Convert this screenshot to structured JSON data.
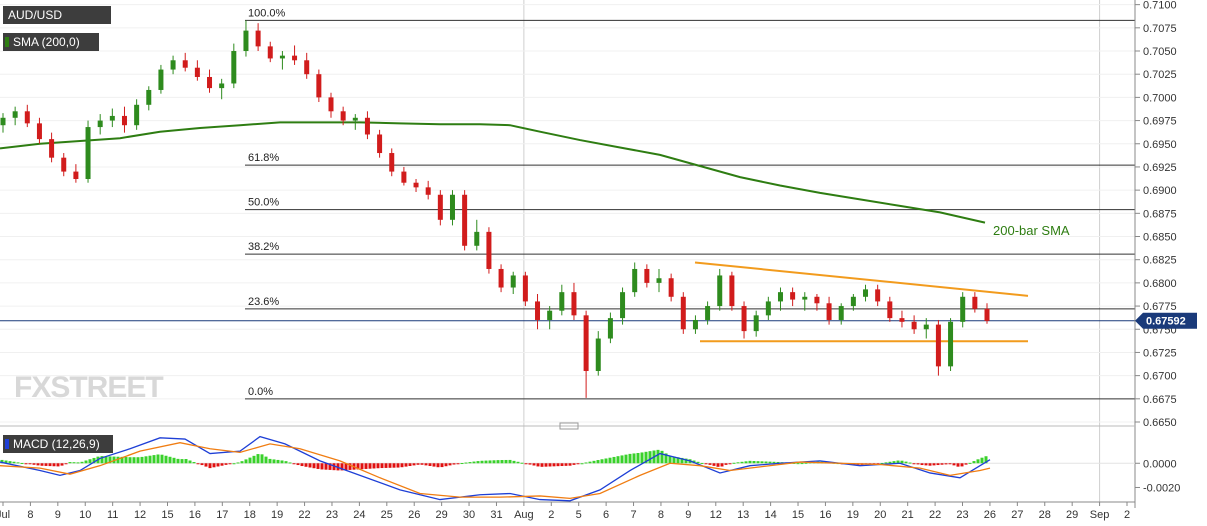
{
  "chart_data": [
    {
      "type": "candlestick",
      "title": "AUD/USD",
      "indicator_label": "SMA (200,0)",
      "watermark": "FXSTREET",
      "ylim": [
        0.665,
        0.7105
      ],
      "y_ticks": [
        "0.7100",
        "0.7075",
        "0.7050",
        "0.7025",
        "0.7000",
        "0.6975",
        "0.6950",
        "0.6925",
        "0.6900",
        "0.6875",
        "0.6850",
        "0.6825",
        "0.6800",
        "0.6775",
        "0.6750",
        "0.6725",
        "0.6700",
        "0.6675",
        "0.6650"
      ],
      "x_ticks": [
        "Jul",
        "8",
        "9",
        "10",
        "11",
        "12",
        "15",
        "16",
        "17",
        "18",
        "19",
        "22",
        "23",
        "24",
        "25",
        "26",
        "29",
        "30",
        "31",
        "Aug",
        "2",
        "5",
        "6",
        "7",
        "8",
        "9",
        "12",
        "13",
        "14",
        "15",
        "16",
        "19",
        "20",
        "21",
        "22",
        "23",
        "26",
        "27",
        "28",
        "29",
        "Sep",
        "2"
      ],
      "current_price": "0.67592",
      "fibonacci": [
        {
          "label": "100.0%",
          "value": 0.7083
        },
        {
          "label": "61.8%",
          "value": 0.6927
        },
        {
          "label": "50.0%",
          "value": 0.6879
        },
        {
          "label": "38.2%",
          "value": 0.6831
        },
        {
          "label": "23.6%",
          "value": 0.6772
        },
        {
          "label": "0.0%",
          "value": 0.6675
        }
      ],
      "sma_label": "200-bar SMA",
      "sma_points": [
        [
          0,
          0.6945
        ],
        [
          40,
          0.695
        ],
        [
          80,
          0.6953
        ],
        [
          120,
          0.6956
        ],
        [
          160,
          0.6963
        ],
        [
          200,
          0.6967
        ],
        [
          240,
          0.697
        ],
        [
          280,
          0.6973
        ],
        [
          320,
          0.6973
        ],
        [
          360,
          0.6973
        ],
        [
          400,
          0.6972
        ],
        [
          440,
          0.6971
        ],
        [
          480,
          0.6971
        ],
        [
          510,
          0.697
        ],
        [
          540,
          0.6963
        ],
        [
          580,
          0.6954
        ],
        [
          620,
          0.6946
        ],
        [
          660,
          0.6938
        ],
        [
          700,
          0.6926
        ],
        [
          740,
          0.6914
        ],
        [
          780,
          0.6905
        ],
        [
          820,
          0.6897
        ],
        [
          860,
          0.689
        ],
        [
          900,
          0.6883
        ],
        [
          940,
          0.6876
        ],
        [
          985,
          0.6865
        ]
      ],
      "trendlines": [
        {
          "name": "resistance",
          "points": [
            [
              695,
              0.6822
            ],
            [
              1028,
              0.6786
            ]
          ]
        },
        {
          "name": "support",
          "points": [
            [
              700,
              0.6737
            ],
            [
              1028,
              0.6737
            ]
          ]
        }
      ],
      "candles": [
        {
          "o": 0.697,
          "h": 0.6983,
          "l": 0.6962,
          "c": 0.6978
        },
        {
          "o": 0.6978,
          "h": 0.699,
          "l": 0.697,
          "c": 0.6985
        },
        {
          "o": 0.6985,
          "h": 0.6992,
          "l": 0.6968,
          "c": 0.6972
        },
        {
          "o": 0.6972,
          "h": 0.6978,
          "l": 0.695,
          "c": 0.6955
        },
        {
          "o": 0.6955,
          "h": 0.6962,
          "l": 0.693,
          "c": 0.6935
        },
        {
          "o": 0.6935,
          "h": 0.694,
          "l": 0.6915,
          "c": 0.692
        },
        {
          "o": 0.692,
          "h": 0.6928,
          "l": 0.6908,
          "c": 0.6912
        },
        {
          "o": 0.6912,
          "h": 0.6975,
          "l": 0.6908,
          "c": 0.6968
        },
        {
          "o": 0.6968,
          "h": 0.6982,
          "l": 0.696,
          "c": 0.6975
        },
        {
          "o": 0.6975,
          "h": 0.6988,
          "l": 0.6968,
          "c": 0.698
        },
        {
          "o": 0.698,
          "h": 0.699,
          "l": 0.6962,
          "c": 0.697
        },
        {
          "o": 0.697,
          "h": 0.6998,
          "l": 0.6965,
          "c": 0.6992
        },
        {
          "o": 0.6992,
          "h": 0.7012,
          "l": 0.6986,
          "c": 0.7008
        },
        {
          "o": 0.7008,
          "h": 0.7035,
          "l": 0.7004,
          "c": 0.703
        },
        {
          "o": 0.703,
          "h": 0.7045,
          "l": 0.7025,
          "c": 0.704
        },
        {
          "o": 0.704,
          "h": 0.7048,
          "l": 0.7028,
          "c": 0.7032
        },
        {
          "o": 0.7032,
          "h": 0.704,
          "l": 0.7018,
          "c": 0.7022
        },
        {
          "o": 0.7022,
          "h": 0.703,
          "l": 0.7005,
          "c": 0.701
        },
        {
          "o": 0.701,
          "h": 0.702,
          "l": 0.6998,
          "c": 0.7015
        },
        {
          "o": 0.7015,
          "h": 0.7058,
          "l": 0.701,
          "c": 0.705
        },
        {
          "o": 0.705,
          "h": 0.7083,
          "l": 0.7044,
          "c": 0.7072
        },
        {
          "o": 0.7072,
          "h": 0.708,
          "l": 0.705,
          "c": 0.7055
        },
        {
          "o": 0.7055,
          "h": 0.706,
          "l": 0.7038,
          "c": 0.7042
        },
        {
          "o": 0.7042,
          "h": 0.705,
          "l": 0.703,
          "c": 0.7045
        },
        {
          "o": 0.7045,
          "h": 0.7056,
          "l": 0.7035,
          "c": 0.704
        },
        {
          "o": 0.704,
          "h": 0.7048,
          "l": 0.702,
          "c": 0.7025
        },
        {
          "o": 0.7025,
          "h": 0.703,
          "l": 0.6995,
          "c": 0.7
        },
        {
          "o": 0.7,
          "h": 0.7005,
          "l": 0.6978,
          "c": 0.6985
        },
        {
          "o": 0.6985,
          "h": 0.699,
          "l": 0.697,
          "c": 0.6975
        },
        {
          "o": 0.6975,
          "h": 0.6982,
          "l": 0.6965,
          "c": 0.6978
        },
        {
          "o": 0.6978,
          "h": 0.6985,
          "l": 0.6955,
          "c": 0.696
        },
        {
          "o": 0.696,
          "h": 0.6965,
          "l": 0.6935,
          "c": 0.694
        },
        {
          "o": 0.694,
          "h": 0.6945,
          "l": 0.6915,
          "c": 0.692
        },
        {
          "o": 0.692,
          "h": 0.6925,
          "l": 0.6905,
          "c": 0.6908
        },
        {
          "o": 0.6908,
          "h": 0.6912,
          "l": 0.6898,
          "c": 0.6903
        },
        {
          "o": 0.6903,
          "h": 0.691,
          "l": 0.689,
          "c": 0.6895
        },
        {
          "o": 0.6895,
          "h": 0.69,
          "l": 0.6862,
          "c": 0.6868
        },
        {
          "o": 0.6868,
          "h": 0.69,
          "l": 0.6862,
          "c": 0.6895
        },
        {
          "o": 0.6895,
          "h": 0.69,
          "l": 0.6835,
          "c": 0.684
        },
        {
          "o": 0.684,
          "h": 0.6868,
          "l": 0.6835,
          "c": 0.6855
        },
        {
          "o": 0.6855,
          "h": 0.686,
          "l": 0.681,
          "c": 0.6815
        },
        {
          "o": 0.6815,
          "h": 0.682,
          "l": 0.679,
          "c": 0.6795
        },
        {
          "o": 0.6795,
          "h": 0.6812,
          "l": 0.6788,
          "c": 0.6808
        },
        {
          "o": 0.6808,
          "h": 0.6812,
          "l": 0.6775,
          "c": 0.678
        },
        {
          "o": 0.678,
          "h": 0.6788,
          "l": 0.675,
          "c": 0.676
        },
        {
          "o": 0.676,
          "h": 0.6775,
          "l": 0.675,
          "c": 0.677
        },
        {
          "o": 0.677,
          "h": 0.6798,
          "l": 0.6765,
          "c": 0.679
        },
        {
          "o": 0.679,
          "h": 0.68,
          "l": 0.676,
          "c": 0.6765
        },
        {
          "o": 0.6765,
          "h": 0.677,
          "l": 0.6676,
          "c": 0.6705
        },
        {
          "o": 0.6705,
          "h": 0.6748,
          "l": 0.67,
          "c": 0.674
        },
        {
          "o": 0.674,
          "h": 0.6768,
          "l": 0.6735,
          "c": 0.6762
        },
        {
          "o": 0.6762,
          "h": 0.6795,
          "l": 0.6755,
          "c": 0.679
        },
        {
          "o": 0.679,
          "h": 0.6822,
          "l": 0.6785,
          "c": 0.6815
        },
        {
          "o": 0.6815,
          "h": 0.682,
          "l": 0.6795,
          "c": 0.68
        },
        {
          "o": 0.68,
          "h": 0.6815,
          "l": 0.679,
          "c": 0.6805
        },
        {
          "o": 0.6805,
          "h": 0.681,
          "l": 0.678,
          "c": 0.6785
        },
        {
          "o": 0.6785,
          "h": 0.679,
          "l": 0.6745,
          "c": 0.675
        },
        {
          "o": 0.675,
          "h": 0.6765,
          "l": 0.6745,
          "c": 0.676
        },
        {
          "o": 0.676,
          "h": 0.678,
          "l": 0.6755,
          "c": 0.6775
        },
        {
          "o": 0.6775,
          "h": 0.6815,
          "l": 0.677,
          "c": 0.6808
        },
        {
          "o": 0.6808,
          "h": 0.6812,
          "l": 0.677,
          "c": 0.6775
        },
        {
          "o": 0.6775,
          "h": 0.678,
          "l": 0.674,
          "c": 0.6748
        },
        {
          "o": 0.6748,
          "h": 0.677,
          "l": 0.6742,
          "c": 0.6765
        },
        {
          "o": 0.6765,
          "h": 0.6785,
          "l": 0.676,
          "c": 0.678
        },
        {
          "o": 0.678,
          "h": 0.6795,
          "l": 0.677,
          "c": 0.679
        },
        {
          "o": 0.679,
          "h": 0.6795,
          "l": 0.6775,
          "c": 0.6782
        },
        {
          "o": 0.6782,
          "h": 0.679,
          "l": 0.677,
          "c": 0.6785
        },
        {
          "o": 0.6785,
          "h": 0.6788,
          "l": 0.677,
          "c": 0.6778
        },
        {
          "o": 0.6778,
          "h": 0.6785,
          "l": 0.6755,
          "c": 0.676
        },
        {
          "o": 0.676,
          "h": 0.6778,
          "l": 0.6755,
          "c": 0.6775
        },
        {
          "o": 0.6775,
          "h": 0.6788,
          "l": 0.677,
          "c": 0.6785
        },
        {
          "o": 0.6785,
          "h": 0.6798,
          "l": 0.678,
          "c": 0.6793
        },
        {
          "o": 0.6793,
          "h": 0.6798,
          "l": 0.6775,
          "c": 0.678
        },
        {
          "o": 0.678,
          "h": 0.6785,
          "l": 0.6758,
          "c": 0.6762
        },
        {
          "o": 0.6762,
          "h": 0.677,
          "l": 0.6752,
          "c": 0.6758
        },
        {
          "o": 0.6758,
          "h": 0.6765,
          "l": 0.6745,
          "c": 0.675
        },
        {
          "o": 0.675,
          "h": 0.6762,
          "l": 0.674,
          "c": 0.6755
        },
        {
          "o": 0.6755,
          "h": 0.676,
          "l": 0.67,
          "c": 0.671
        },
        {
          "o": 0.671,
          "h": 0.6762,
          "l": 0.6705,
          "c": 0.6758
        },
        {
          "o": 0.6758,
          "h": 0.679,
          "l": 0.6752,
          "c": 0.6785
        },
        {
          "o": 0.6785,
          "h": 0.679,
          "l": 0.6768,
          "c": 0.6772
        },
        {
          "o": 0.6772,
          "h": 0.6778,
          "l": 0.6756,
          "c": 0.6759
        }
      ]
    },
    {
      "type": "macd",
      "label": "MACD (12,26,9)",
      "ylim": [
        -0.0032,
        0.0025
      ],
      "y_ticks": [
        "0.0000",
        "-0.0020"
      ],
      "macd_points": [
        [
          0,
          0.0001
        ],
        [
          40,
          -0.0006
        ],
        [
          60,
          -0.001
        ],
        [
          80,
          -0.0006
        ],
        [
          100,
          0.0004
        ],
        [
          130,
          0.0012
        ],
        [
          160,
          0.0021
        ],
        [
          185,
          0.002
        ],
        [
          210,
          0.0008
        ],
        [
          240,
          0.001
        ],
        [
          260,
          0.0022
        ],
        [
          285,
          0.0016
        ],
        [
          320,
          0.0002
        ],
        [
          360,
          -0.001
        ],
        [
          400,
          -0.0022
        ],
        [
          440,
          -0.003
        ],
        [
          480,
          -0.0026
        ],
        [
          510,
          -0.0025
        ],
        [
          540,
          -0.003
        ],
        [
          570,
          -0.0031
        ],
        [
          600,
          -0.0022
        ],
        [
          630,
          -0.0006
        ],
        [
          660,
          0.0008
        ],
        [
          690,
          0.0002
        ],
        [
          720,
          -0.0008
        ],
        [
          750,
          -0.0002
        ],
        [
          780,
          0.0
        ],
        [
          820,
          0.0002
        ],
        [
          860,
          -0.0002
        ],
        [
          900,
          0.0
        ],
        [
          930,
          -0.0008
        ],
        [
          960,
          -0.0012
        ],
        [
          980,
          -0.0002
        ],
        [
          990,
          0.0003
        ]
      ],
      "signal_points": [
        [
          0,
          -0.0002
        ],
        [
          40,
          -0.0004
        ],
        [
          70,
          -0.0009
        ],
        [
          100,
          -0.0002
        ],
        [
          140,
          0.001
        ],
        [
          180,
          0.0017
        ],
        [
          210,
          0.0012
        ],
        [
          240,
          0.0009
        ],
        [
          270,
          0.0016
        ],
        [
          300,
          0.0012
        ],
        [
          340,
          0.0002
        ],
        [
          380,
          -0.0012
        ],
        [
          420,
          -0.0025
        ],
        [
          460,
          -0.0028
        ],
        [
          500,
          -0.0028
        ],
        [
          540,
          -0.0027
        ],
        [
          570,
          -0.0029
        ],
        [
          600,
          -0.0025
        ],
        [
          640,
          -0.001
        ],
        [
          670,
          0.0
        ],
        [
          700,
          -0.0002
        ],
        [
          730,
          -0.0006
        ],
        [
          760,
          -0.0003
        ],
        [
          800,
          0.0001
        ],
        [
          840,
          0.0
        ],
        [
          880,
          -0.0001
        ],
        [
          920,
          -0.0004
        ],
        [
          950,
          -0.001
        ],
        [
          980,
          -0.0006
        ],
        [
          990,
          -0.0004
        ]
      ]
    }
  ],
  "watermark": "FXSTREET"
}
